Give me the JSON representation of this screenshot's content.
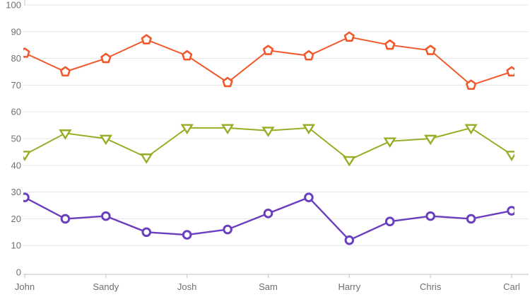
{
  "chart_data": {
    "type": "line",
    "title": "",
    "xlabel": "",
    "ylabel": "",
    "n_points": 13,
    "x_tick_labels": [
      "John",
      "Sandy",
      "Josh",
      "Sam",
      "Harry",
      "Chris",
      "Carl"
    ],
    "x_tick_point_indices": [
      0,
      2,
      4,
      6,
      8,
      10,
      12
    ],
    "y_axis": {
      "min": 0,
      "max": 100,
      "step": 10,
      "tick_labels": [
        "0",
        "10",
        "20",
        "30",
        "40",
        "50",
        "60",
        "70",
        "80",
        "90",
        "100"
      ]
    },
    "grid": true,
    "legend_position": "none",
    "series": [
      {
        "name": "series-orange",
        "marker": "pentagon",
        "color": "#F2582B",
        "values": [
          82,
          75,
          80,
          87,
          81,
          71,
          83,
          81,
          88,
          85,
          83,
          70,
          75
        ]
      },
      {
        "name": "series-green",
        "marker": "triangle-down",
        "color": "#9AAC25",
        "values": [
          44,
          52,
          50,
          43,
          54,
          54,
          53,
          54,
          42,
          49,
          50,
          54,
          44
        ]
      },
      {
        "name": "series-purple",
        "marker": "circle",
        "color": "#6A3FBE",
        "values": [
          28,
          20,
          21,
          15,
          14,
          16,
          22,
          28,
          12,
          19,
          21,
          20,
          23
        ]
      }
    ],
    "colors": {
      "background": "#FFFFFF",
      "gridline": "#E5E5E5",
      "axis_line": "#C2C2C2",
      "tick": "#C2C2C2",
      "label": "#6F6F6F",
      "marker_fill": "#FFFFFF"
    }
  }
}
